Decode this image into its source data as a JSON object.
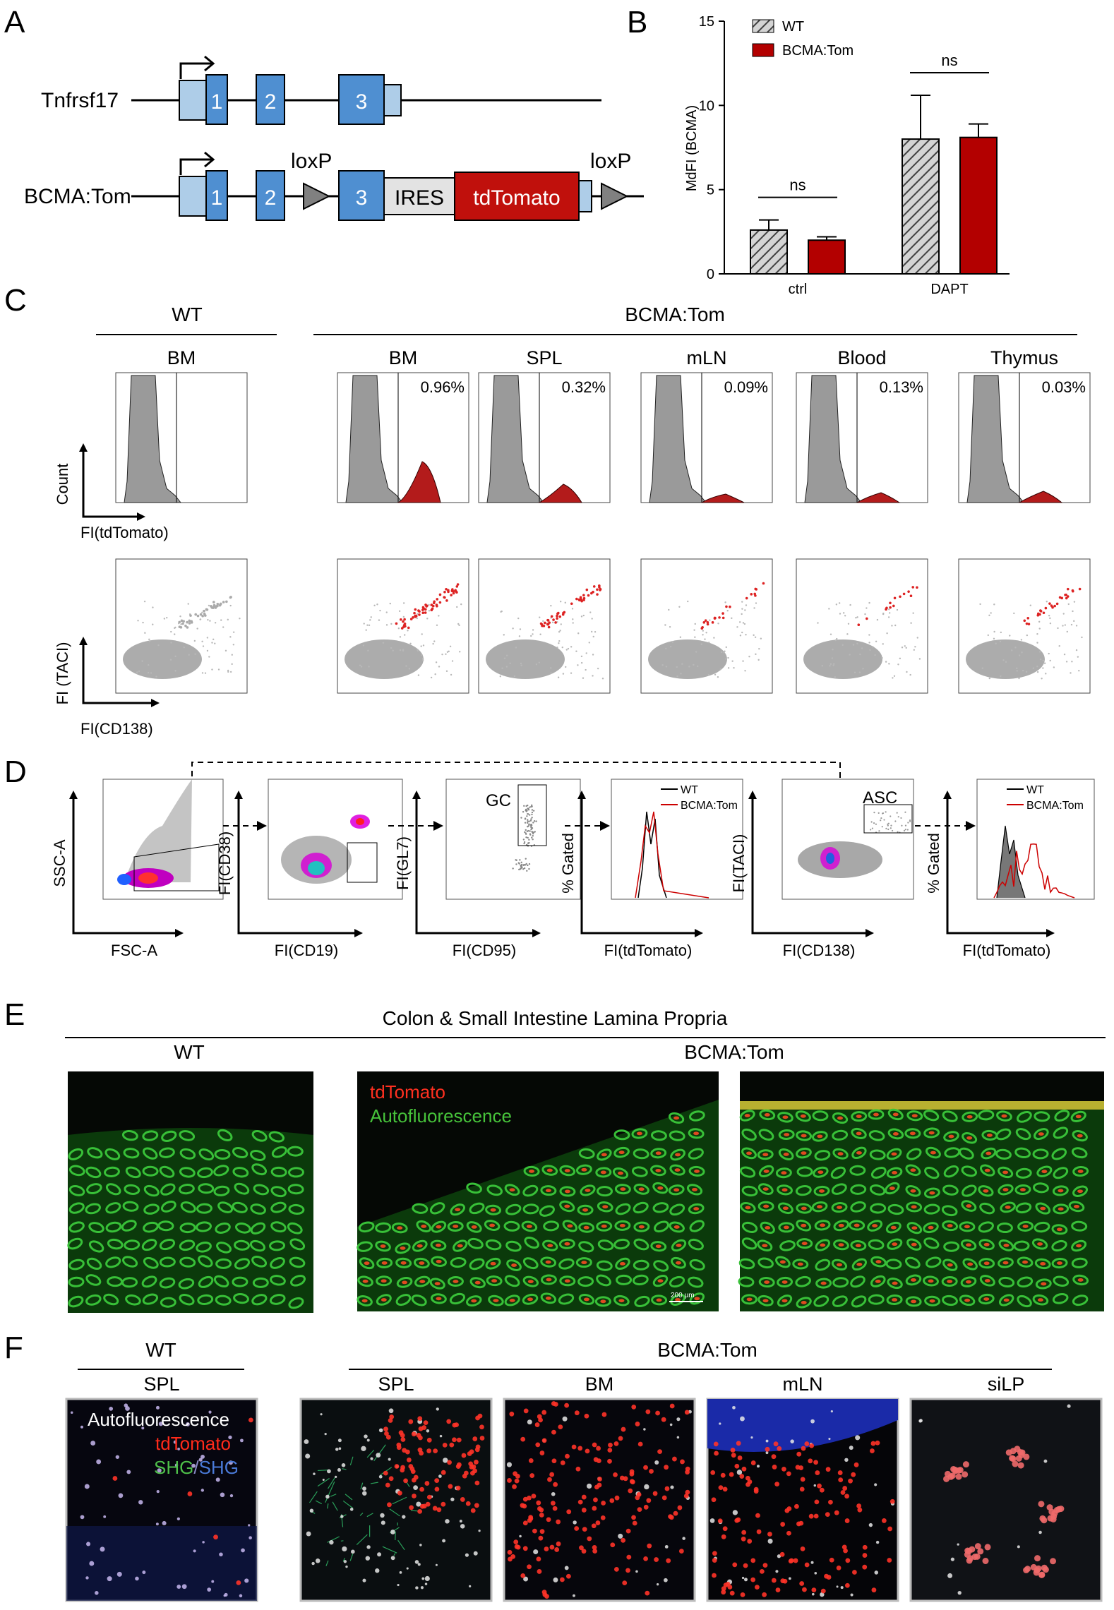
{
  "panel_letters": [
    "A",
    "B",
    "C",
    "D",
    "E",
    "F"
  ],
  "panel_a": {
    "gene_label": "Tnfrsf17",
    "construct_label": "BCMA:Tom",
    "exons": [
      "1",
      "2",
      "3"
    ],
    "loxp": "loxP",
    "ires": "IRES",
    "reporter": "tdTomato"
  },
  "chart_data": {
    "type": "bar",
    "title": "",
    "xlabel": "",
    "ylabel": "MdFI (BCMA)",
    "ylim": [
      0,
      15
    ],
    "yticks": [
      "0",
      "5",
      "10",
      "15"
    ],
    "categories": [
      "ctrl",
      "DAPT"
    ],
    "series": [
      {
        "name": "WT",
        "values": [
          2.6,
          8.0
        ],
        "errors": [
          0.6,
          2.6
        ],
        "color": "#bdbdbd",
        "pattern": "hatched"
      },
      {
        "name": "BCMA:Tom",
        "values": [
          2.0,
          8.1
        ],
        "errors": [
          0.2,
          0.8
        ],
        "color": "#b30000"
      }
    ],
    "annotations": [
      "ns",
      "ns"
    ],
    "legend_position": "top-left"
  },
  "panel_c": {
    "wt_header": "WT",
    "bcma_header": "BCMA:Tom",
    "tissues": [
      "BM",
      "BM",
      "SPL",
      "mLN",
      "Blood",
      "Thymus"
    ],
    "percents": [
      "",
      "0.96%",
      "0.32%",
      "0.09%",
      "0.13%",
      "0.03%"
    ],
    "hist_ylabel": "Count",
    "hist_xlabel": "FI(tdTomato)",
    "scatter_ylabel": "FI (TACI)",
    "scatter_xlabel": "FI(CD138)"
  },
  "panel_d": {
    "plots": [
      {
        "y": "SSC-A",
        "x": "FSC-A"
      },
      {
        "y": "FI(CD38)",
        "x": "FI(CD19)"
      },
      {
        "y": "FI(GL7)",
        "x": "FI(CD95)"
      },
      {
        "y": "% Gated",
        "x": "FI(tdTomato)"
      },
      {
        "y": "FI(TACI)",
        "x": "FI(CD138)"
      },
      {
        "y": "% Gated",
        "x": "FI(tdTomato)"
      }
    ],
    "gc_gate": "GC",
    "asc_gate": "ASC",
    "legend_wt": "WT",
    "legend_bcma": "BCMA:Tom"
  },
  "panel_e": {
    "title": "Colon & Small Intestine Lamina Propria",
    "wt": "WT",
    "bcma": "BCMA:Tom",
    "legend_red": "tdTomato",
    "legend_green": "Autofluorescence",
    "scale_bar": "200 µm"
  },
  "panel_f": {
    "wt": "WT",
    "bcma": "BCMA:Tom",
    "tissues": [
      "SPL",
      "SPL",
      "BM",
      "mLN",
      "siLP"
    ],
    "legend_white": "Autofluorescence",
    "legend_red": "tdTomato",
    "legend_shg1": "SHG",
    "legend_slash": "/",
    "legend_shg2": "SHG"
  }
}
